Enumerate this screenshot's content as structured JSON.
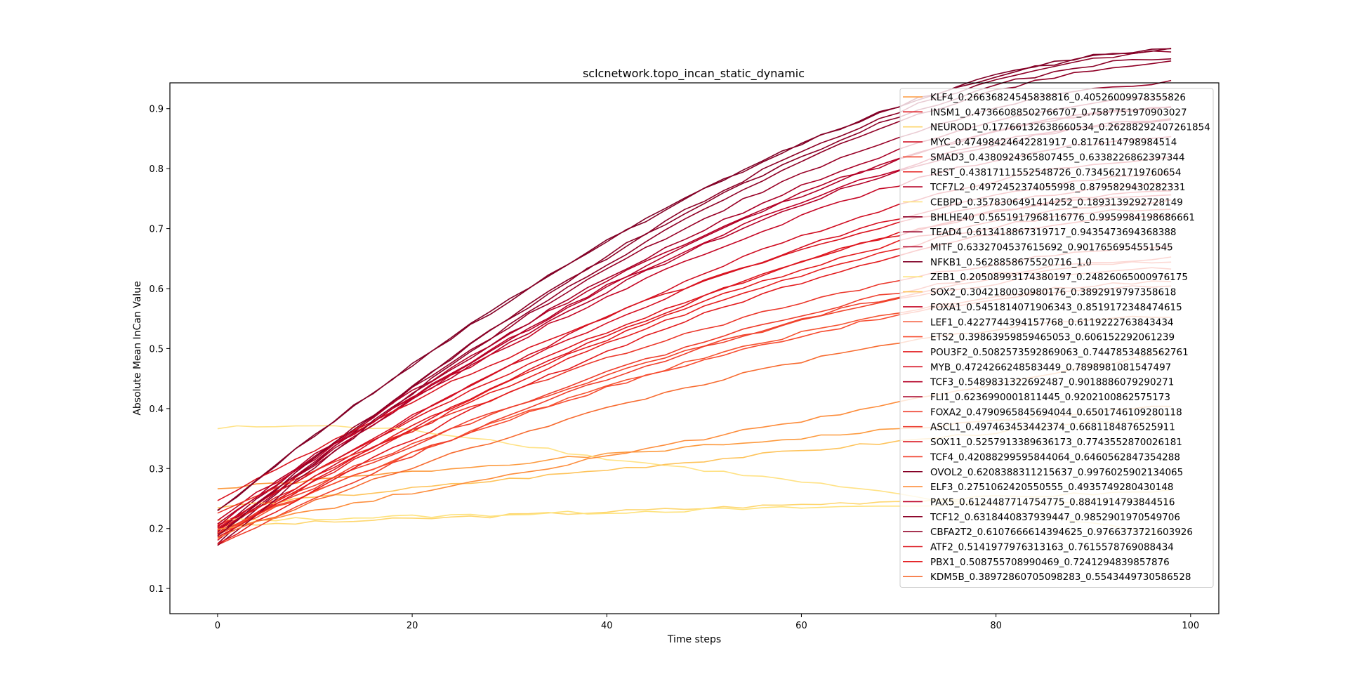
{
  "chart_data": {
    "type": "line",
    "title": "sclcnetwork.topo_incan_static_dynamic",
    "xlabel": "Time steps",
    "ylabel": "Absolute Mean InCan Value",
    "xlim": [
      -4.9,
      102.9
    ],
    "ylim": [
      0.058,
      0.943
    ],
    "xticks": [
      0,
      20,
      40,
      60,
      80,
      100
    ],
    "yticks": [
      0.1,
      0.2,
      0.3,
      0.4,
      0.5,
      0.6,
      0.7,
      0.8,
      0.9
    ],
    "grid": false,
    "legend_position": "upper-right",
    "x": [
      0,
      98
    ],
    "series": [
      {
        "name": "KLF4_0.26636824545838816_0.40526009978355826",
        "start": 0.266,
        "end": 0.405,
        "color": "#fd9a3e",
        "curve": "linear"
      },
      {
        "name": "INSM1_0.47366088502766707_0.7587751970903027",
        "start": 0.205,
        "end": 0.759,
        "color": "#df171e",
        "curve": "s"
      },
      {
        "name": "NEUROD1_0.17766132638660534_0.26288292407261854",
        "start": 0.204,
        "end": 0.263,
        "color": "#fed66e",
        "curve": "linear"
      },
      {
        "name": "MYC_0.47498424642281917_0.8176114798984514",
        "start": 0.183,
        "end": 0.818,
        "color": "#d00d21",
        "curve": "s"
      },
      {
        "name": "SMAD3_0.4380924365807455_0.6338226862397344",
        "start": 0.204,
        "end": 0.634,
        "color": "#f1442c",
        "curve": "s"
      },
      {
        "name": "REST_0.43817111552548726_0.7345621719760654",
        "start": 0.19,
        "end": 0.735,
        "color": "#e6201f",
        "curve": "s"
      },
      {
        "name": "TCF7L2_0.4972452374055998_0.8795829430282331",
        "start": 0.198,
        "end": 0.88,
        "color": "#b50026",
        "curve": "s"
      },
      {
        "name": "CEBPD_0.3578306491414252_0.1893139292728149",
        "start": 0.367,
        "end": 0.189,
        "color": "#ffe285",
        "curve": "hump"
      },
      {
        "name": "BHLHE40_0.5651917968116776_0.9959984198686661",
        "start": 0.176,
        "end": 0.996,
        "color": "#8d0026",
        "curve": "s"
      },
      {
        "name": "TEAD4_0.613418867319717_0.9435473694368388",
        "start": 0.197,
        "end": 0.944,
        "color": "#980026",
        "curve": "s"
      },
      {
        "name": "MITF_0.6332704537615692_0.9017656954551545",
        "start": 0.19,
        "end": 0.902,
        "color": "#b10026",
        "curve": "s"
      },
      {
        "name": "NFKB1_0.5628858675520716_1.0",
        "start": 0.229,
        "end": 1.0,
        "color": "#800026",
        "curve": "s"
      },
      {
        "name": "ZEB1_0.20508993174380197_0.24826065000976175",
        "start": 0.213,
        "end": 0.248,
        "color": "#fee27c",
        "curve": "linear"
      },
      {
        "name": "SOX2_0.3042180030980176_0.3892919797358618",
        "start": 0.235,
        "end": 0.389,
        "color": "#fec35a",
        "curve": "linear"
      },
      {
        "name": "FOXA1_0.5451814071906343_0.8519172348474615",
        "start": 0.215,
        "end": 0.852,
        "color": "#c50624",
        "curve": "s"
      },
      {
        "name": "LEF1_0.4227744394157768_0.6119222763843434",
        "start": 0.192,
        "end": 0.612,
        "color": "#f55331",
        "curve": "s"
      },
      {
        "name": "ETS2_0.39863959859465053_0.606152292061239",
        "start": 0.195,
        "end": 0.606,
        "color": "#f74b2f",
        "curve": "s"
      },
      {
        "name": "POU3F2_0.5082573592869063_0.7447853488562761",
        "start": 0.195,
        "end": 0.745,
        "color": "#e31a1c",
        "curve": "s"
      },
      {
        "name": "MYB_0.4724266248583449_0.7898981081547497",
        "start": 0.2,
        "end": 0.79,
        "color": "#d60f20",
        "curve": "s"
      },
      {
        "name": "TCF3_0.5489831322692487_0.9018886079290271",
        "start": 0.208,
        "end": 0.902,
        "color": "#b40026",
        "curve": "s"
      },
      {
        "name": "FLI1_0.6236990001811445_0.9202100862575173",
        "start": 0.192,
        "end": 0.92,
        "color": "#a80026",
        "curve": "s"
      },
      {
        "name": "FOXA2_0.4790965845694044_0.6501746109280118",
        "start": 0.195,
        "end": 0.65,
        "color": "#ee3d2b",
        "curve": "s"
      },
      {
        "name": "ASCL1_0.497463453442374_0.6681184876525911",
        "start": 0.223,
        "end": 0.668,
        "color": "#eb3629",
        "curve": "s"
      },
      {
        "name": "SOX11_0.5257913389636173_0.7743552870026181",
        "start": 0.245,
        "end": 0.774,
        "color": "#da141f",
        "curve": "s"
      },
      {
        "name": "TCF4_0.42088299595844064_0.6460562847354288",
        "start": 0.172,
        "end": 0.646,
        "color": "#f0402c",
        "curve": "s"
      },
      {
        "name": "OVOL2_0.6208388311215637_0.9976025902134065",
        "start": 0.23,
        "end": 0.998,
        "color": "#850026",
        "curve": "s"
      },
      {
        "name": "ELF3_0.2751062420550555_0.4935749280430148",
        "start": 0.2,
        "end": 0.494,
        "color": "#fd8d3c",
        "curve": "linear"
      },
      {
        "name": "PAX5_0.6124487714754775_0.8841914793844516",
        "start": 0.205,
        "end": 0.884,
        "color": "#bd0026",
        "curve": "s"
      },
      {
        "name": "TCF12_0.6318440837939447_0.9852901970549706",
        "start": 0.185,
        "end": 0.985,
        "color": "#8a0026",
        "curve": "s"
      },
      {
        "name": "CBFA2T2_0.6107666614394625_0.9766373721603926",
        "start": 0.17,
        "end": 0.977,
        "color": "#900026",
        "curve": "s"
      },
      {
        "name": "ATF2_0.5141977976313163_0.7615578769088434",
        "start": 0.185,
        "end": 0.762,
        "color": "#dd161f",
        "curve": "s"
      },
      {
        "name": "PBX1_0.508755708990469_0.7241294839857876",
        "start": 0.175,
        "end": 0.724,
        "color": "#e31a1c",
        "curve": "s"
      },
      {
        "name": "KDM5B_0.38972860705098283_0.5543449730586528",
        "start": 0.185,
        "end": 0.554,
        "color": "#f76b30",
        "curve": "s"
      }
    ]
  }
}
